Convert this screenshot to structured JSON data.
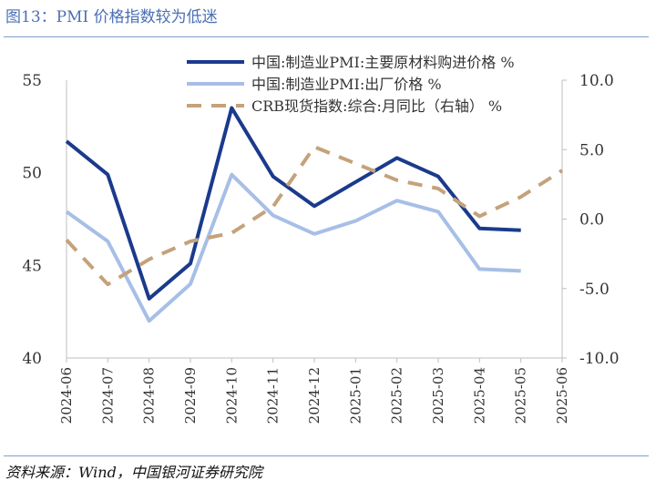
{
  "header": {
    "title": "图13：PMI 价格指数较为低迷"
  },
  "footer": {
    "source": "资料来源：Wind，中国银河证券研究院"
  },
  "chart_data": {
    "type": "line",
    "categories": [
      "2024-06",
      "2024-07",
      "2024-08",
      "2024-09",
      "2024-10",
      "2024-11",
      "2024-12",
      "2025-01",
      "2025-02",
      "2025-03",
      "2025-04",
      "2025-05",
      "2025-06"
    ],
    "left_axis": {
      "ylim": [
        40,
        55
      ],
      "ticks": [
        "40",
        "45",
        "50",
        "55"
      ]
    },
    "right_axis": {
      "ylim": [
        -10,
        10
      ],
      "ticks": [
        "-10.0",
        "-5.0",
        "0.0",
        "5.0",
        "10.0"
      ]
    },
    "grid": false,
    "legend_position": "top-right",
    "series": [
      {
        "name": "中国:制造业PMI:主要原材料购进价格 %",
        "axis": "left",
        "style": "solid",
        "color": "#1a3a8c",
        "values": [
          51.7,
          49.9,
          43.2,
          45.1,
          53.5,
          49.8,
          48.2,
          49.5,
          50.8,
          49.8,
          47.0,
          46.9,
          null
        ]
      },
      {
        "name": "中国:制造业PMI:出厂价格 %",
        "axis": "left",
        "style": "solid",
        "color": "#a7bfe6",
        "values": [
          47.9,
          46.3,
          42.0,
          44.0,
          49.9,
          47.7,
          46.7,
          47.4,
          48.5,
          47.9,
          44.8,
          44.7,
          null
        ]
      },
      {
        "name": "CRB现货指数:综合:月同比（右轴） %",
        "axis": "right",
        "style": "dashed",
        "color": "#c4a27a",
        "values": [
          -1.5,
          -4.7,
          -2.9,
          -1.6,
          -1.0,
          0.9,
          5.2,
          4.0,
          2.8,
          2.2,
          0.2,
          1.6,
          3.5
        ]
      }
    ]
  }
}
